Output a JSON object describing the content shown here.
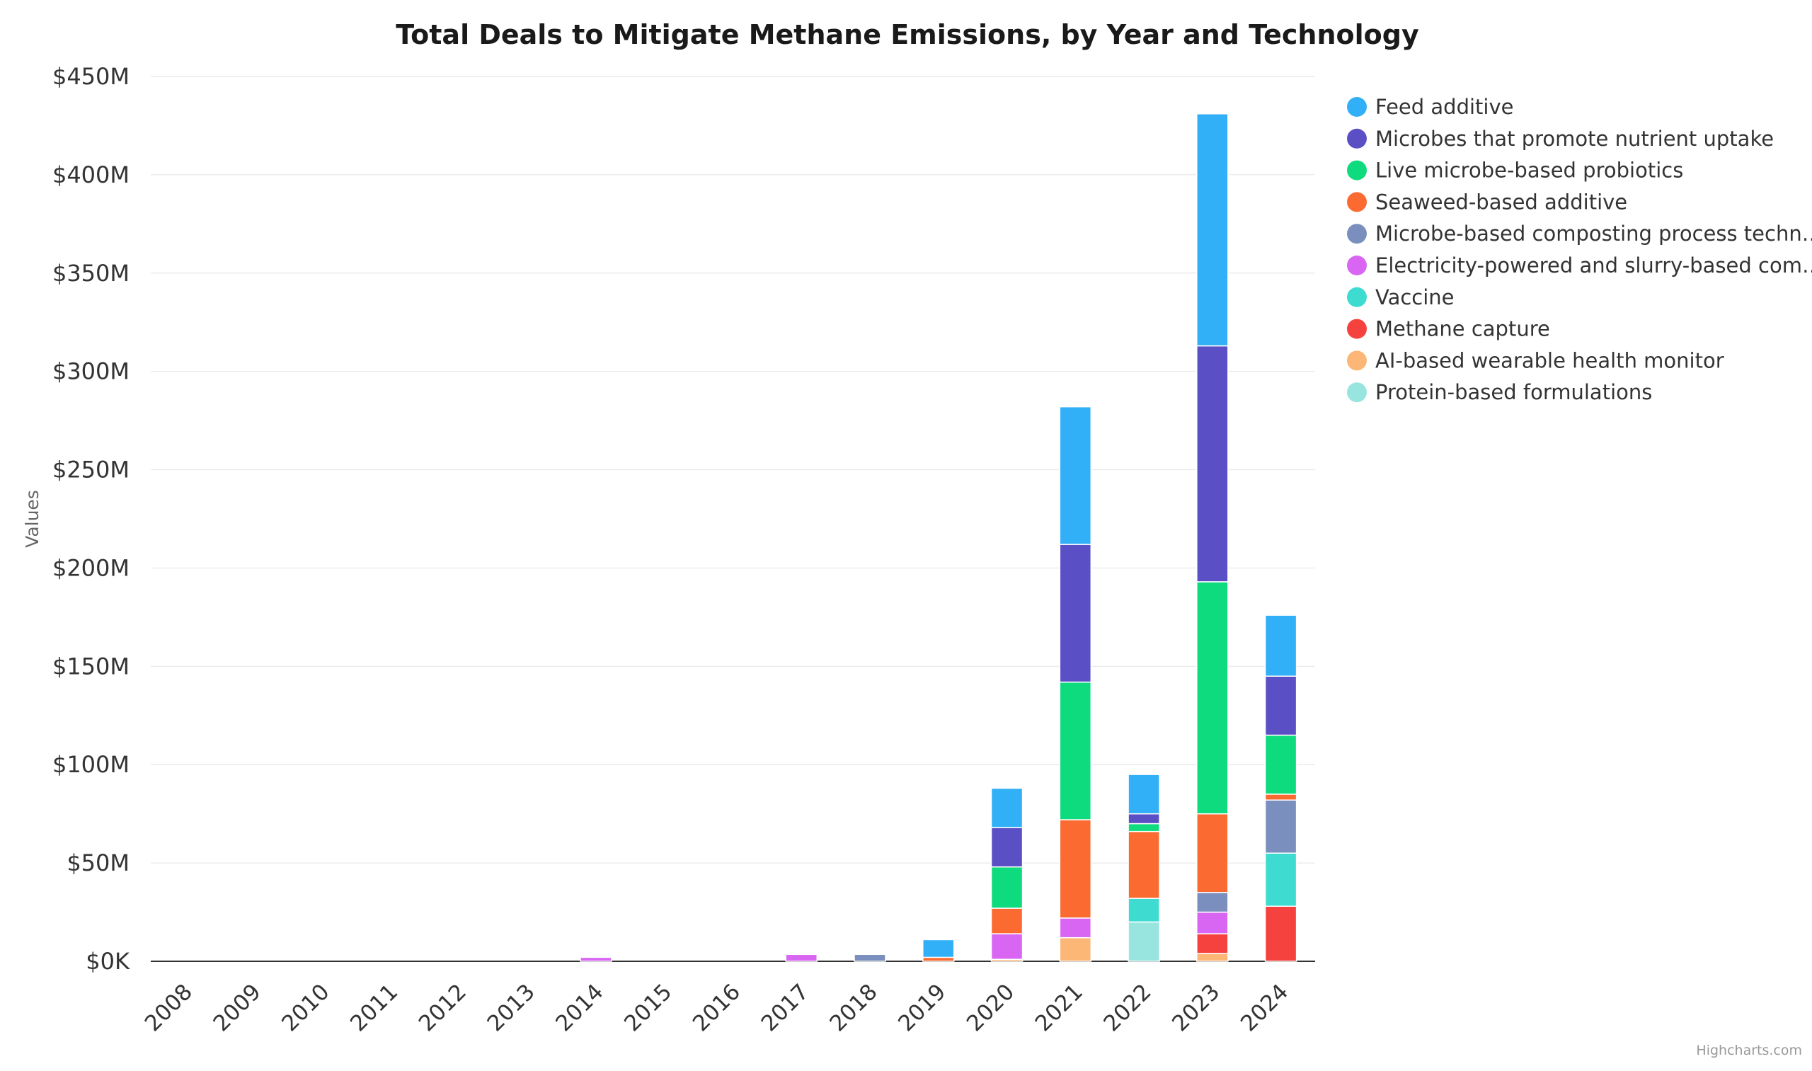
{
  "credits": "Highcharts.com",
  "chart_data": {
    "type": "bar",
    "stacked": true,
    "title": "Total Deals to Mitigate Methane Emissions, by Year and Technology",
    "ylabel": "Values",
    "xlabel": "",
    "ylim": [
      0,
      450
    ],
    "y_unit": "$M",
    "yticks": [
      0,
      50,
      100,
      150,
      200,
      250,
      300,
      350,
      400,
      450
    ],
    "ytick_labels": [
      "$0K",
      "$50M",
      "$100M",
      "$150M",
      "$200M",
      "$250M",
      "$300M",
      "$350M",
      "$400M",
      "$450M"
    ],
    "grid": true,
    "legend_position": "right",
    "categories": [
      "2008",
      "2009",
      "2010",
      "2011",
      "2012",
      "2013",
      "2014",
      "2015",
      "2016",
      "2017",
      "2018",
      "2019",
      "2020",
      "2021",
      "2022",
      "2023",
      "2024"
    ],
    "series": [
      {
        "name": "Protein-based formulations",
        "color": "#98e4df",
        "values": [
          0,
          0,
          0,
          0,
          0,
          0,
          0,
          0,
          0,
          0,
          0,
          0,
          0,
          0,
          20,
          0,
          0
        ]
      },
      {
        "name": "AI-based wearable health monitor",
        "color": "#fcb676",
        "values": [
          0,
          0,
          0,
          0,
          0,
          0,
          0,
          0,
          0,
          0,
          0,
          0,
          1,
          12,
          0,
          4,
          0
        ]
      },
      {
        "name": "Methane capture",
        "color": "#f6423f",
        "values": [
          0,
          0,
          0,
          0,
          0,
          0,
          0,
          0,
          0,
          0,
          0,
          0,
          0,
          0,
          0,
          10,
          28
        ]
      },
      {
        "name": "Vaccine",
        "color": "#3edcd0",
        "values": [
          0,
          0,
          0,
          0,
          0,
          0,
          0,
          0,
          0,
          0,
          0,
          0,
          0,
          0,
          12,
          0,
          27
        ]
      },
      {
        "name": "Electricity-powered and slurry-based com…",
        "color": "#d966f2",
        "values": [
          0,
          0,
          0,
          0,
          0,
          0,
          2,
          0,
          0,
          3.5,
          0,
          0,
          13,
          10,
          0,
          11,
          0
        ]
      },
      {
        "name": "Microbe-based composting process techn…",
        "color": "#7a8fbd",
        "values": [
          0,
          0,
          0,
          0,
          0,
          0,
          0,
          0,
          0,
          0,
          3.5,
          0,
          0,
          0,
          0,
          10,
          27
        ]
      },
      {
        "name": "Seaweed-based additive",
        "color": "#fb6a31",
        "values": [
          0,
          0,
          0,
          0,
          0,
          0,
          0,
          0,
          0,
          0,
          0,
          2,
          13,
          50,
          34,
          40,
          3
        ]
      },
      {
        "name": "Live microbe-based probiotics",
        "color": "#0edb7e",
        "values": [
          0,
          0,
          0,
          0,
          0,
          0,
          0,
          0,
          0,
          0,
          0,
          0,
          21,
          70,
          4,
          118,
          30
        ]
      },
      {
        "name": "Microbes that promote nutrient uptake",
        "color": "#5a4fc5",
        "values": [
          0,
          0,
          0,
          0,
          0,
          0,
          0,
          0,
          0,
          0,
          0,
          0,
          20,
          70,
          5,
          120,
          30
        ]
      },
      {
        "name": "Feed additive",
        "color": "#31aff7",
        "values": [
          0,
          0,
          0,
          0,
          0,
          0,
          0,
          0,
          0,
          0,
          0,
          9,
          20,
          70,
          20,
          118,
          31
        ]
      }
    ],
    "legend_order": [
      "Feed additive",
      "Microbes that promote nutrient uptake",
      "Live microbe-based probiotics",
      "Seaweed-based additive",
      "Microbe-based composting process techn…",
      "Electricity-powered and slurry-based com…",
      "Vaccine",
      "Methane capture",
      "AI-based wearable health monitor",
      "Protein-based formulations"
    ]
  }
}
